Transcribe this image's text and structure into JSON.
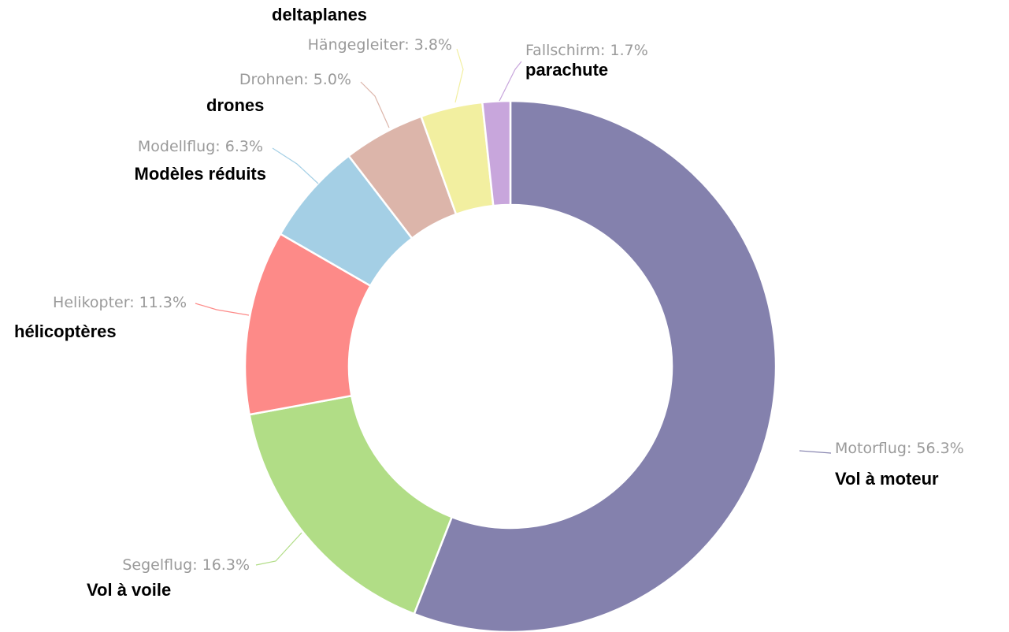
{
  "chart_data": {
    "type": "pie",
    "donut": true,
    "slices": [
      {
        "label": "Motorflug: 56.3%",
        "name": "Motorflug",
        "value": 56.3,
        "translation": "Vol à moteur",
        "color": "#8481ad"
      },
      {
        "label": "Segelflug: 16.3%",
        "name": "Segelflug",
        "value": 16.3,
        "translation": "Vol à voile",
        "color": "#b1dd86"
      },
      {
        "label": "Helikopter: 11.3%",
        "name": "Helikopter",
        "value": 11.3,
        "translation": "hélicoptères",
        "color": "#fd8a88"
      },
      {
        "label": "Modellflug: 6.3%",
        "name": "Modellflug",
        "value": 6.3,
        "translation": "Modèles réduits",
        "color": "#a4cfe5"
      },
      {
        "label": "Drohnen: 5.0%",
        "name": "Drohnen",
        "value": 5.0,
        "translation": "drones",
        "color": "#dcb5aa"
      },
      {
        "label": "Hängegleiter: 3.8%",
        "name": "Hängegleiter",
        "value": 3.8,
        "translation": "deltaplanes",
        "color": "#f2efa0"
      },
      {
        "label": "Fallschirm: 1.7%",
        "name": "Fallschirm",
        "value": 1.7,
        "translation": "parachute",
        "color": "#c8a6dc"
      }
    ],
    "title": "",
    "legend": false
  }
}
